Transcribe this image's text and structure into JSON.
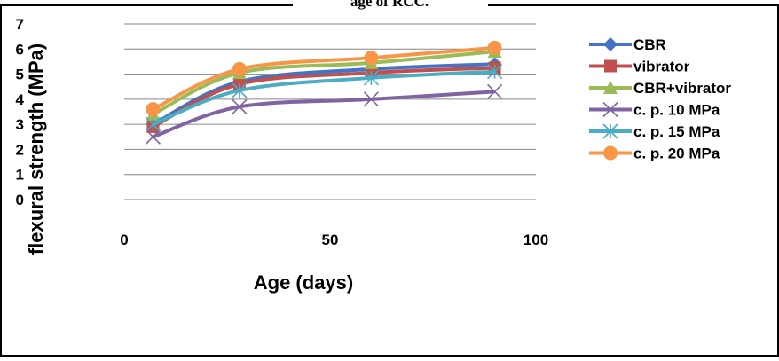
{
  "chart_data": {
    "type": "scatter",
    "title": "age of RCC.",
    "xlabel": "Age (days)",
    "ylabel": "flexural strength (MPa)",
    "xlim": [
      0,
      100
    ],
    "ylim": [
      0,
      7
    ],
    "xticks": [
      0,
      50,
      100
    ],
    "yticks": [
      0,
      1,
      2,
      3,
      4,
      5,
      6,
      7
    ],
    "grid": "horizontal major gridlines",
    "smooth_lines": true,
    "legend_position": "right",
    "series": [
      {
        "name": "CBR",
        "color": "#4472C4",
        "marker": "diamond",
        "x": [
          7,
          28,
          60,
          90
        ],
        "y": [
          3.0,
          4.7,
          5.2,
          5.4
        ]
      },
      {
        "name": "vibrator",
        "color": "#C0504D",
        "marker": "square",
        "x": [
          7,
          28,
          60,
          90
        ],
        "y": [
          2.9,
          4.6,
          5.05,
          5.25
        ]
      },
      {
        "name": "CBR+vibrator",
        "color": "#9BBB59",
        "marker": "triangle",
        "x": [
          7,
          28,
          60,
          90
        ],
        "y": [
          3.4,
          5.05,
          5.45,
          5.9
        ]
      },
      {
        "name": "c. p. 10 MPa",
        "color": "#8064A2",
        "marker": "x",
        "x": [
          7,
          28,
          60,
          90
        ],
        "y": [
          2.5,
          3.7,
          4.0,
          4.3
        ]
      },
      {
        "name": "c. p. 15 MPa",
        "color": "#4BACC6",
        "marker": "star",
        "x": [
          7,
          28,
          60,
          90
        ],
        "y": [
          3.0,
          4.35,
          4.85,
          5.1
        ]
      },
      {
        "name": "c. p. 20 MPa",
        "color": "#F79646",
        "marker": "circle",
        "x": [
          7,
          28,
          60,
          90
        ],
        "y": [
          3.6,
          5.2,
          5.65,
          6.05
        ]
      }
    ]
  }
}
